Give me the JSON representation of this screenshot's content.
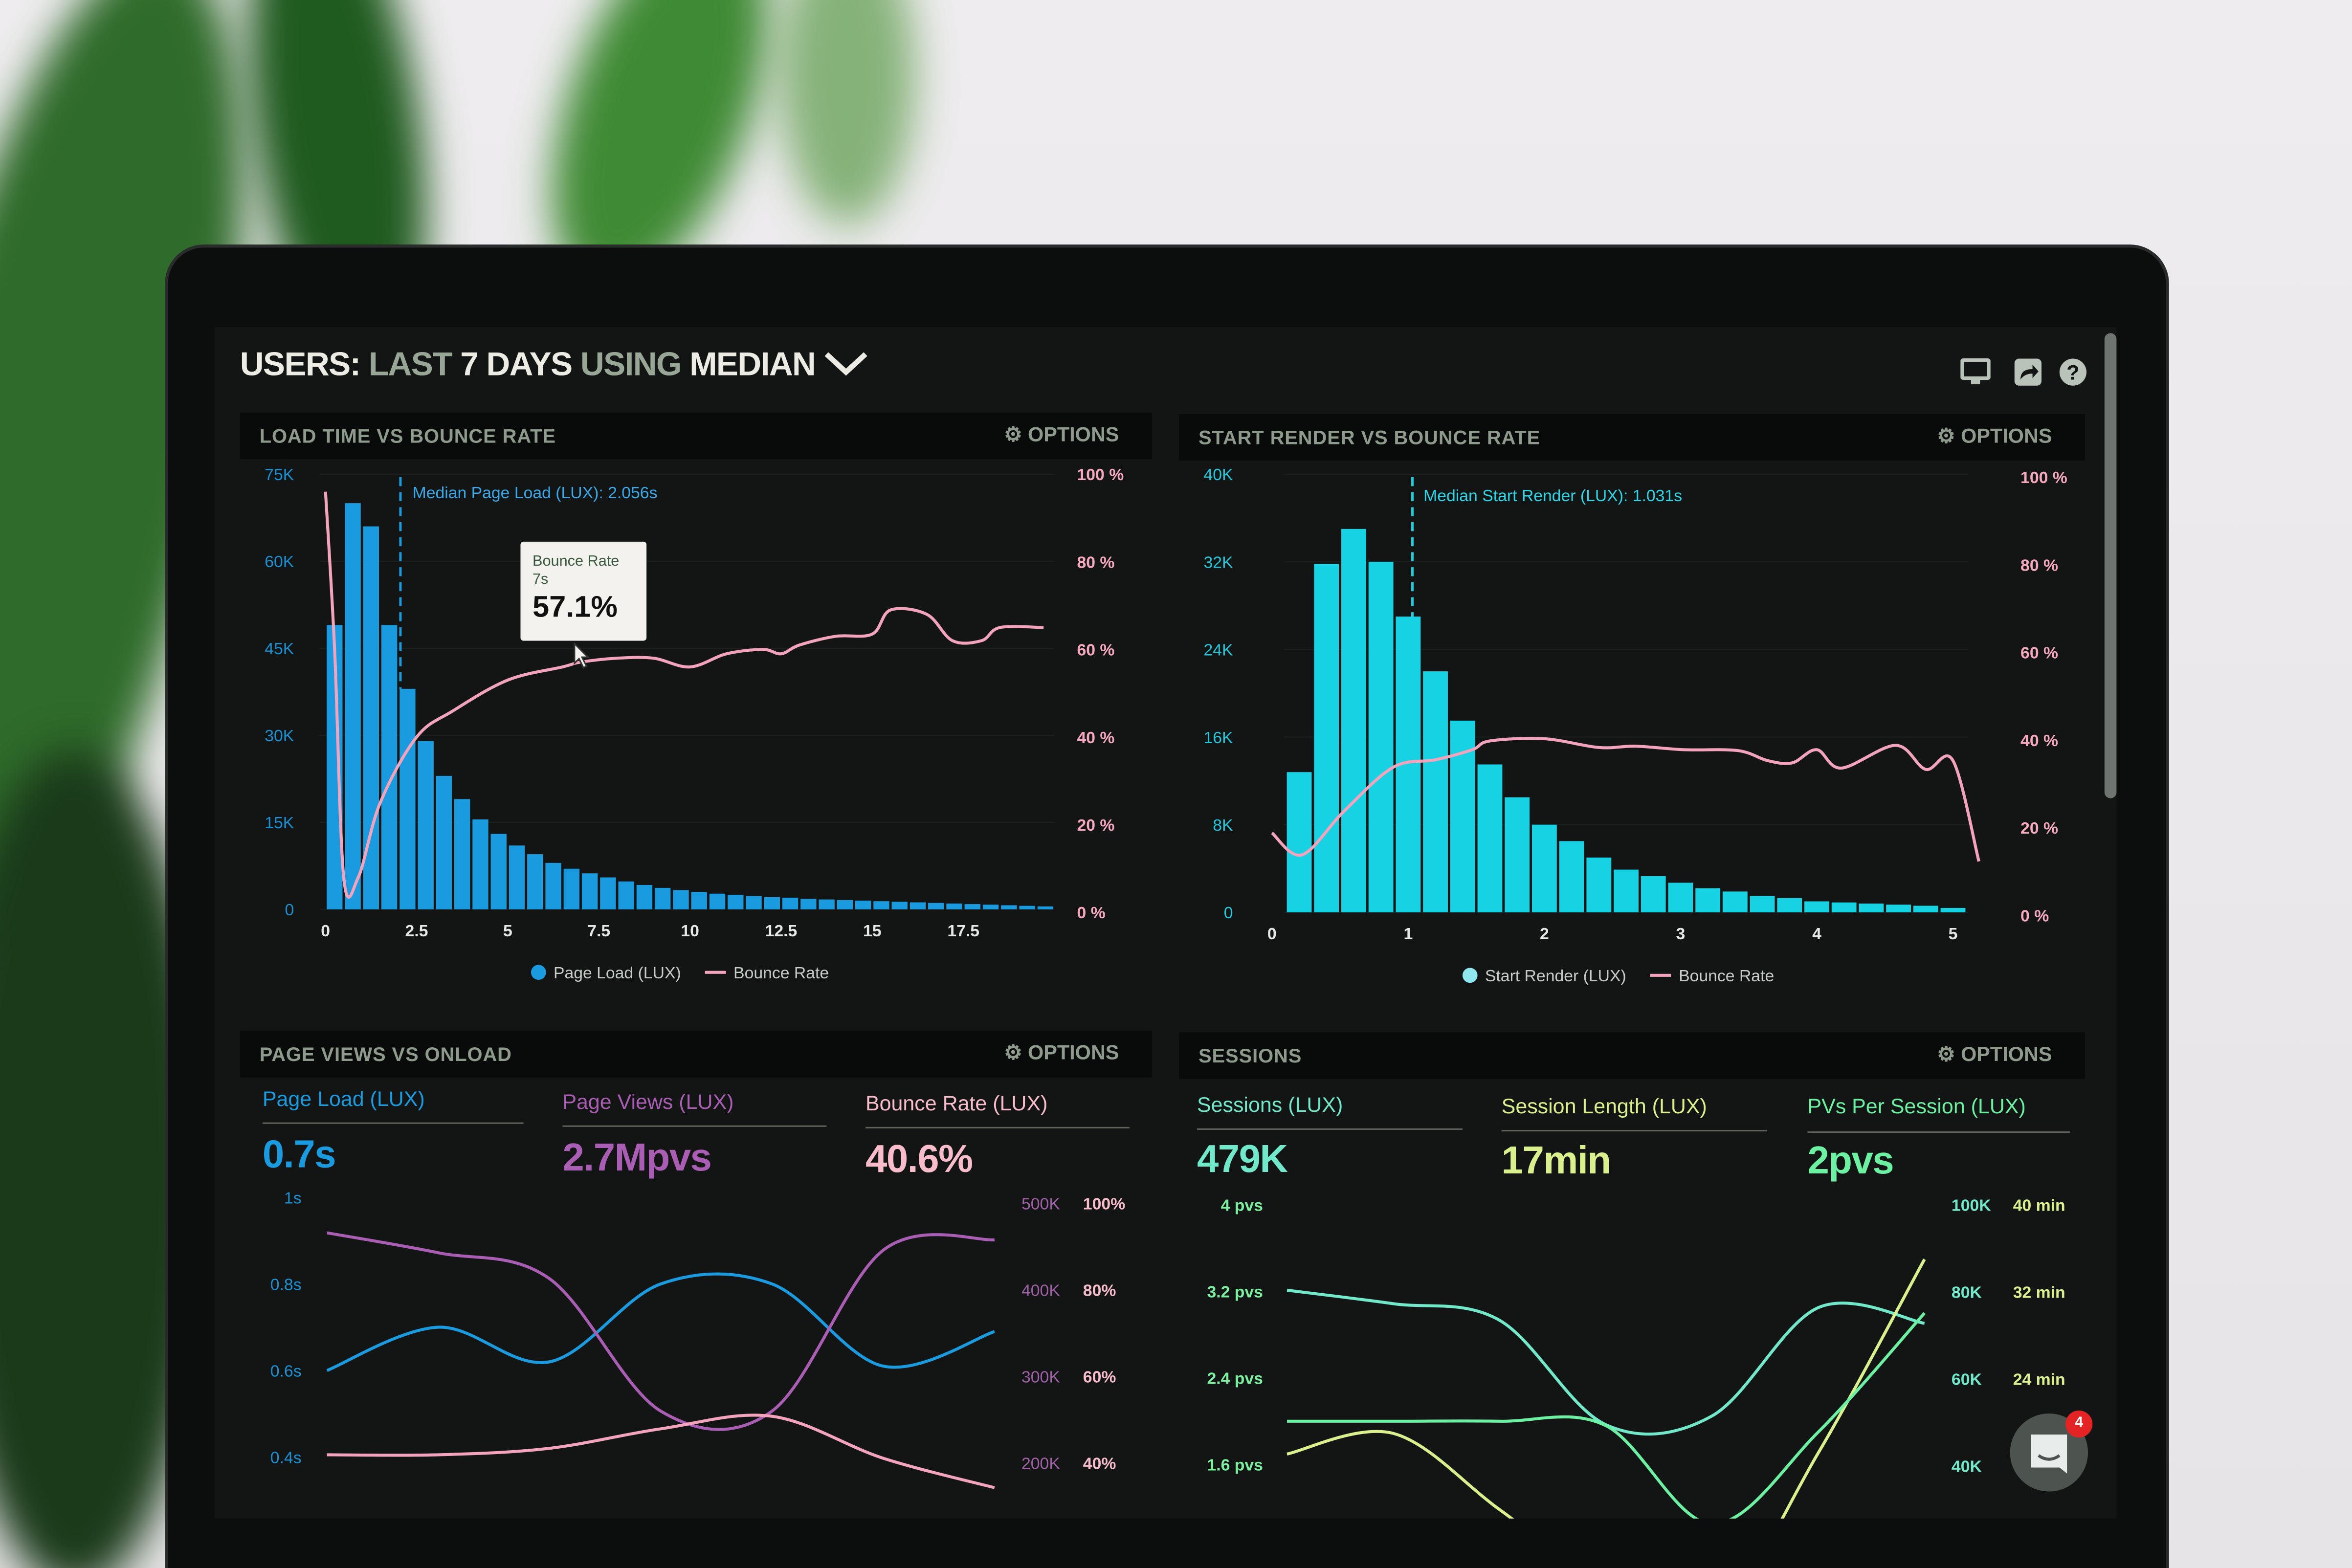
{
  "header": {
    "title_parts": [
      "USERS:",
      "LAST",
      "7 DAYS",
      "USING",
      "MEDIAN"
    ],
    "dropdown_icon": "chevron-down-icon",
    "icons": [
      "monitor-icon",
      "share-icon",
      "help-icon"
    ]
  },
  "colors": {
    "page_load": "#1a9be0",
    "start_render": "#17d2e2",
    "bounce": "#f3a3bb",
    "page_views": "#a95db3",
    "bounce_kpi": "#f8bccb",
    "sessions": "#70e8c9",
    "session_length": "#d9f08c",
    "pvs": "#6cf0a1"
  },
  "panels": {
    "load_time": {
      "title": "LOAD TIME VS BOUNCE RATE",
      "options": "OPTIONS",
      "median_label": "Median Page Load (LUX): 2.056s",
      "tooltip": {
        "title": "Bounce Rate",
        "x": "7s",
        "value": "57.1%"
      },
      "legend": [
        "Page Load (LUX)",
        "Bounce Rate"
      ]
    },
    "start_render": {
      "title": "START RENDER VS BOUNCE RATE",
      "options": "OPTIONS",
      "median_label": "Median Start Render (LUX): 1.031s",
      "legend": [
        "Start Render (LUX)",
        "Bounce Rate"
      ]
    },
    "page_views": {
      "title": "PAGE VIEWS VS ONLOAD",
      "options": "OPTIONS",
      "kpis": [
        {
          "label": "Page Load (LUX)",
          "value": "0.7s"
        },
        {
          "label": "Page Views (LUX)",
          "value": "2.7Mpvs"
        },
        {
          "label": "Bounce Rate (LUX)",
          "value": "40.6%"
        }
      ]
    },
    "sessions": {
      "title": "SESSIONS",
      "options": "OPTIONS",
      "kpis": [
        {
          "label": "Sessions (LUX)",
          "value": "479K"
        },
        {
          "label": "Session Length (LUX)",
          "value": "17min"
        },
        {
          "label": "PVs Per Session (LUX)",
          "value": "2pvs"
        }
      ]
    }
  },
  "chat": {
    "badge": "4",
    "icon": "chat-icon"
  },
  "chart_data": [
    {
      "type": "bar",
      "title": "LOAD TIME VS BOUNCE RATE",
      "x_ticks": [
        "0",
        "2.5",
        "5",
        "7.5",
        "10",
        "12.5",
        "15",
        "17.5"
      ],
      "y_left_ticks": [
        "0",
        "15K",
        "30K",
        "45K",
        "60K",
        "75K"
      ],
      "y_right_ticks": [
        "0 %",
        "20 %",
        "40 %",
        "60 %",
        "80 %",
        "100 %"
      ],
      "xlim": [
        0,
        20
      ],
      "ylim_left": [
        0,
        75000
      ],
      "ylim_right": [
        0,
        100
      ],
      "median_x": 2.056,
      "bars": {
        "name": "Page Load (LUX)",
        "bin_start": 0,
        "bin_width": 0.5,
        "values": [
          49000,
          70000,
          66000,
          49000,
          38000,
          29000,
          23000,
          19000,
          15500,
          13000,
          11000,
          9500,
          8000,
          7000,
          6200,
          5500,
          4800,
          4200,
          3700,
          3300,
          3000,
          2700,
          2500,
          2300,
          2100,
          2000,
          1800,
          1700,
          1600,
          1500,
          1400,
          1300,
          1200,
          1100,
          1000,
          900,
          800,
          700,
          600,
          500
        ]
      },
      "line": {
        "name": "Bounce Rate",
        "axis": "right",
        "x": [
          0,
          0.25,
          0.5,
          0.9,
          1.5,
          2.5,
          3.5,
          5,
          6.5,
          7,
          8,
          9,
          10,
          11,
          12,
          12.5,
          13,
          14,
          15,
          15.5,
          16.5,
          17.2,
          18,
          18.5,
          19.7
        ],
        "y": [
          96,
          60,
          8,
          8,
          25,
          40,
          46,
          53,
          56,
          57.1,
          58,
          58,
          56,
          59,
          60,
          59,
          61,
          63,
          63.5,
          69,
          68,
          62,
          62,
          65,
          65
        ]
      }
    },
    {
      "type": "bar",
      "title": "START RENDER VS BOUNCE RATE",
      "x_ticks": [
        "0",
        "1",
        "2",
        "3",
        "4",
        "5"
      ],
      "y_left_ticks": [
        "0",
        "8K",
        "16K",
        "24K",
        "32K",
        "40K"
      ],
      "y_right_ticks": [
        "0 %",
        "20 %",
        "40 %",
        "60 %",
        "80 %",
        "100 %"
      ],
      "xlim": [
        0,
        5.2
      ],
      "ylim_left": [
        0,
        40000
      ],
      "ylim_right": [
        0,
        100
      ],
      "median_x": 1.031,
      "bars": {
        "name": "Start Render (LUX)",
        "bin_width": 0.2,
        "centers": [
          0.2,
          0.4,
          0.6,
          0.8,
          1.0,
          1.2,
          1.4,
          1.6,
          1.8,
          2.0,
          2.2,
          2.4,
          2.6,
          2.8,
          3.0,
          3.2,
          3.4,
          3.6,
          3.8,
          4.0,
          4.2,
          4.4,
          4.6,
          4.8,
          5.0
        ],
        "values": [
          12800,
          31800,
          35000,
          32000,
          27000,
          22000,
          17500,
          13500,
          10500,
          8000,
          6500,
          5000,
          3900,
          3300,
          2700,
          2200,
          1900,
          1500,
          1300,
          1000,
          900,
          800,
          700,
          600,
          400
        ]
      },
      "line": {
        "name": "Bounce Rate",
        "axis": "right",
        "x": [
          0,
          0.22,
          0.53,
          0.89,
          1.2,
          1.47,
          1.6,
          2.0,
          2.4,
          2.67,
          3.02,
          3.42,
          3.64,
          3.82,
          4.0,
          4.18,
          4.58,
          4.8,
          5.0,
          5.19
        ],
        "y": [
          18.8,
          13.8,
          23.8,
          33.8,
          35.5,
          37.8,
          39.8,
          40.3,
          38.3,
          38.6,
          37.8,
          37.6,
          35.3,
          34.8,
          37.8,
          33.6,
          38.8,
          33.3,
          35.3,
          12.3
        ]
      }
    },
    {
      "type": "line",
      "title": "PAGE VIEWS VS ONLOAD",
      "y_left_ticks": [
        "0.4s",
        "0.6s",
        "0.8s",
        "1s"
      ],
      "y_right_ticks_views": [
        "200K",
        "300K",
        "400K",
        "500K"
      ],
      "y_right_ticks_bounce": [
        "40%",
        "60%",
        "80%",
        "100%"
      ],
      "ylim_left": [
        0.4,
        1.0
      ],
      "ylim_views": [
        200000,
        500000
      ],
      "ylim_bounce": [
        40,
        100
      ],
      "x": [
        0,
        1,
        2,
        3,
        4,
        5,
        6
      ],
      "series": [
        {
          "name": "Page Load (LUX)",
          "axis": "left",
          "values": [
            0.6,
            0.7,
            0.62,
            0.8,
            0.8,
            0.61,
            0.69
          ]
        },
        {
          "name": "Page Views (LUX)",
          "axis": "views",
          "values": [
            466000,
            443000,
            413000,
            260000,
            260000,
            446000,
            458000
          ]
        },
        {
          "name": "Bounce Rate (LUX)",
          "axis": "bounce",
          "values": [
            41.9,
            41.9,
            43.4,
            47.9,
            50.8,
            41.1,
            34.3
          ]
        }
      ]
    },
    {
      "type": "line",
      "title": "SESSIONS",
      "y_left_ticks": [
        "1.6 pvs",
        "2.4 pvs",
        "3.2 pvs",
        "4 pvs"
      ],
      "y_right_ticks_sessions": [
        "40K",
        "60K",
        "80K",
        "100K"
      ],
      "y_right_ticks_length": [
        "24 min",
        "32 min",
        "40 min"
      ],
      "ylim_left": [
        1.6,
        4.0
      ],
      "ylim_sessions": [
        40000,
        100000
      ],
      "ylim_length": [
        16,
        40
      ],
      "x": [
        0,
        1,
        2,
        3,
        4,
        5,
        6
      ],
      "series": [
        {
          "name": "Sessions (LUX)",
          "axis": "sessions",
          "values": [
            80400,
            77300,
            73500,
            49500,
            51500,
            76400,
            72800
          ]
        },
        {
          "name": "Session Length (LUX)",
          "axis": "length",
          "values": [
            17.1,
            19.0,
            12.0,
            5,
            2,
            17.2,
            35.0
          ]
        },
        {
          "name": "PVs Per Session (LUX)",
          "axis": "left",
          "values": [
            2.0,
            2.0,
            2.0,
            1.96,
            1.05,
            1.9,
            3.0
          ]
        }
      ]
    }
  ]
}
